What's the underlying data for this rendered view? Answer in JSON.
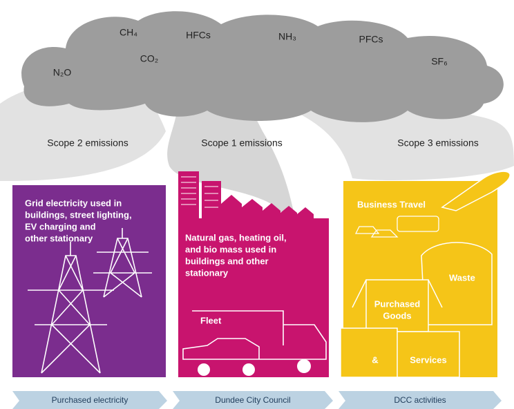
{
  "gases": [
    "N₂O",
    "CH₄",
    "CO₂",
    "HFCs",
    "NH₃",
    "PFCs",
    "SF₆"
  ],
  "scopes": [
    {
      "heading": "Scope 2 emissions",
      "description": [
        "Grid electricity used in",
        "buildings, street lighting,",
        "EV charging and",
        "other stationary"
      ],
      "footer": "Purchased electricity"
    },
    {
      "heading": "Scope 1 emissions",
      "description": [
        "Natural gas, heating oil,",
        "and bio mass used in",
        "buildings and other",
        "stationary"
      ],
      "labels": [
        "Fleet"
      ],
      "footer": "Dundee City Council"
    },
    {
      "heading": "Scope 3 emissions",
      "labels": [
        "Business Travel",
        "Waste",
        "Purchased",
        "Goods",
        "&",
        "Services"
      ],
      "footer": "DCC activities"
    }
  ]
}
